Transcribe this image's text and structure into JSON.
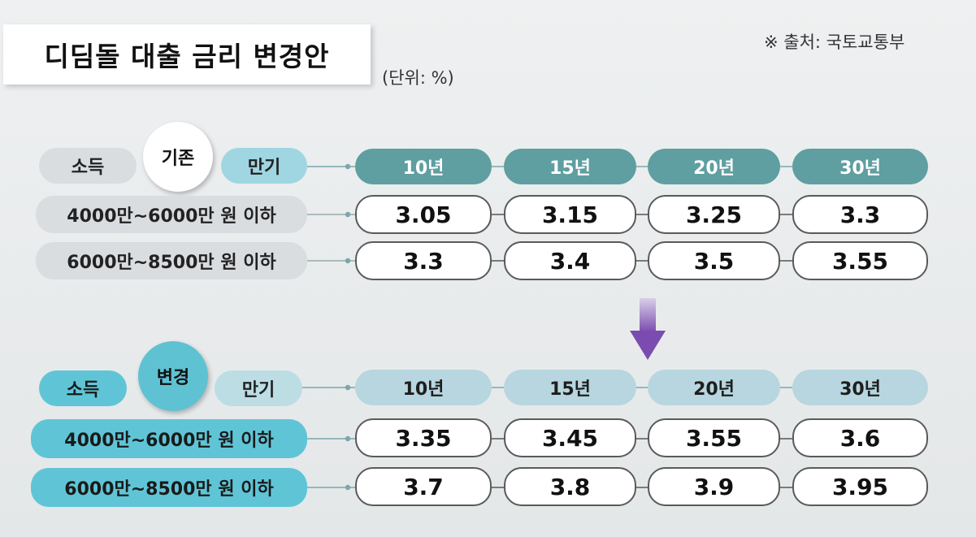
{
  "title": "디딤돌 대출 금리 변경안",
  "unit_note": "(단위: %)",
  "source_note": "※ 출처: 국토교통부",
  "chart_data": {
    "type": "table",
    "title": "디딤돌 대출 금리 변경안",
    "unit": "%",
    "row_header": "소득",
    "column_header": "만기",
    "columns": [
      "10년",
      "15년",
      "20년",
      "30년"
    ],
    "tables": [
      {
        "name": "기존",
        "rows": [
          {
            "label": "4000만~6000만 원 이하",
            "values": [
              "3.05",
              "3.15",
              "3.25",
              "3.3"
            ]
          },
          {
            "label": "6000만~8500만 원 이하",
            "values": [
              "3.3",
              "3.4",
              "3.5",
              "3.55"
            ]
          }
        ]
      },
      {
        "name": "변경",
        "rows": [
          {
            "label": "4000만~6000만 원 이하",
            "values": [
              "3.35",
              "3.45",
              "3.55",
              "3.6"
            ]
          },
          {
            "label": "6000만~8500만 원 이하",
            "values": [
              "3.7",
              "3.8",
              "3.9",
              "3.95"
            ]
          }
        ]
      }
    ]
  },
  "colors": {
    "header_dark": "#5f9ea1",
    "header_light": "#b7d6df",
    "label_cyan": "#5fc5d6",
    "arrow": "#7b4bb0"
  },
  "icons": {
    "arrow": "down-arrow-icon"
  }
}
